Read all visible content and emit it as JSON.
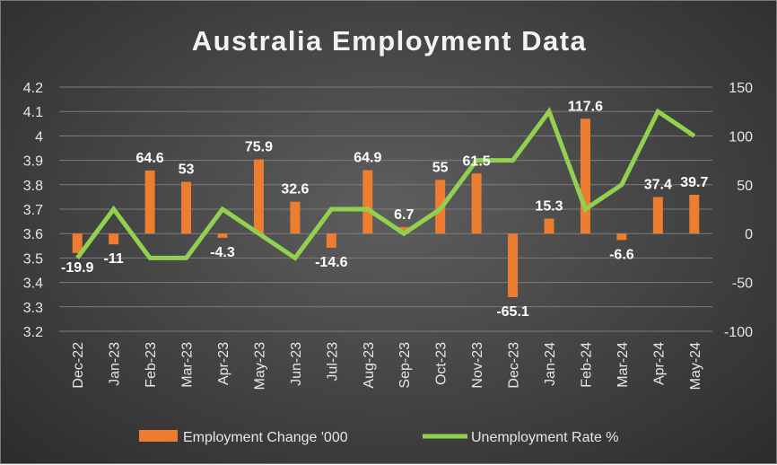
{
  "chart_data": {
    "type": "bar",
    "title": "Australia Employment Data",
    "categories": [
      "Dec-22",
      "Jan-23",
      "Feb-23",
      "Mar-23",
      "Apr-23",
      "May-23",
      "Jun-23",
      "Jul-23",
      "Aug-23",
      "Sep-23",
      "Oct-23",
      "Nov-23",
      "Dec-23",
      "Jan-24",
      "Feb-24",
      "Mar-24",
      "Apr-24",
      "May-24"
    ],
    "series": [
      {
        "name": "Employment Change '000",
        "type": "bar",
        "axis": "secondary",
        "values": [
          -19.9,
          -11,
          64.6,
          53,
          -4.3,
          75.9,
          32.6,
          -14.6,
          64.9,
          6.7,
          55,
          61.5,
          -65.1,
          15.3,
          117.6,
          -6.6,
          37.4,
          39.7
        ],
        "labels": [
          "-19.9",
          "-11",
          "64.6",
          "53",
          "-4.3",
          "75.9",
          "32.6",
          "-14.6",
          "64.9",
          "6.7",
          "55",
          "61.5",
          "-65.1",
          "15.3",
          "117.6",
          "-6.6",
          "37.4",
          "39.7"
        ],
        "color": "#ED7D31"
      },
      {
        "name": "Unemployment Rate %",
        "type": "line",
        "axis": "primary",
        "values": [
          3.5,
          3.7,
          3.5,
          3.5,
          3.7,
          3.6,
          3.5,
          3.7,
          3.7,
          3.6,
          3.7,
          3.9,
          3.9,
          4.1,
          3.7,
          3.8,
          4.1,
          4.0
        ],
        "color": "#92D050"
      }
    ],
    "y_primary": {
      "ylim": [
        3.2,
        4.2
      ],
      "ticks": [
        "3.2",
        "3.3",
        "3.4",
        "3.5",
        "3.6",
        "3.7",
        "3.8",
        "3.9",
        "4",
        "4.1",
        "4.2"
      ]
    },
    "y_secondary": {
      "ylim": [
        -100,
        150
      ],
      "ticks": [
        "-100",
        "-50",
        "0",
        "50",
        "100",
        "150"
      ]
    },
    "grid": true,
    "legend": "bottom"
  }
}
